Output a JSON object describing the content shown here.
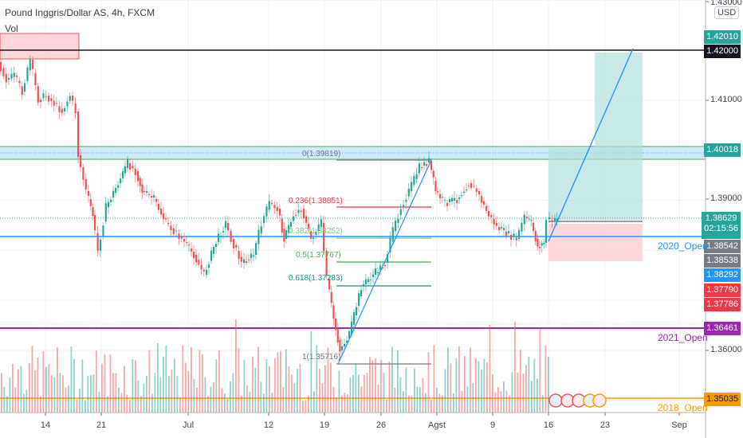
{
  "header": {
    "title": "Pound Inggris/Dollar AS, 4h, FXCM",
    "volume_label": "Vol"
  },
  "price_axis": {
    "currency_badge": "USD",
    "ticks": [
      "1.43000",
      "1.41000",
      "1.39000",
      "1.36000"
    ],
    "labels": {
      "target": {
        "value": "1.42010",
        "color": "#26a69a"
      },
      "round_level": {
        "value": "1.42000",
        "color": "#131722"
      },
      "resistance": {
        "value": "1.40018",
        "color": "#26a69a"
      },
      "last_price": {
        "value": "1.38629",
        "countdown": "02:15:56",
        "color": "#26a69a"
      },
      "open_2020": {
        "value": "1.38542",
        "color": "#787b86"
      },
      "gray2": {
        "value": "1.38538",
        "color": "#787b86"
      },
      "blue": {
        "value": "1.38292",
        "color": "#2196f3"
      },
      "red1": {
        "value": "1.37790",
        "color": "#f23645"
      },
      "red2": {
        "value": "1.37786",
        "color": "#f23645"
      },
      "open_2021": {
        "value": "1.36461",
        "color": "#9c27b0"
      },
      "open_2018": {
        "value": "1.35035",
        "color": "#ff9800"
      }
    }
  },
  "time_axis": {
    "ticks": [
      "14",
      "21",
      "Jul",
      "12",
      "19",
      "26",
      "Agst",
      "9",
      "16",
      "23",
      "Sep"
    ]
  },
  "annotations": {
    "open_2020": "2020_Open",
    "open_2021": "2021_Open",
    "open_2018": "2018_Open",
    "fib_0": "0(1.39819)",
    "fib_236": "0.236(1.38851)",
    "fib_382": "0.382(1.38252)",
    "fib_5": "0.5(1.37767)",
    "fib_618": "0.618(1.37283)",
    "fib_1": "1(1.35716)"
  },
  "colors": {
    "bull": "#26a69a",
    "bear": "#ef5350",
    "grid": "#eef1f6",
    "fib_red": "#f23645",
    "fib_green": "#4caf50",
    "fib_teal": "#089981",
    "fib_gray": "#787b86",
    "trend_blue": "#2196f3",
    "zone_blue": "#bbdefb",
    "long_target": "#b2dfdb",
    "long_stop": "#ffcdd2"
  },
  "chart_data": {
    "type": "candlestick",
    "title": "Pound Inggris/Dollar AS, 4h, FXCM",
    "symbol": "GBPUSD",
    "timeframe": "4h",
    "xlabel": "",
    "ylabel": "USD",
    "x_ticks": [
      "14",
      "21",
      "Jul",
      "12",
      "19",
      "26",
      "Agst",
      "9",
      "16",
      "23",
      "Sep"
    ],
    "y_ticks": [
      1.43,
      1.42,
      1.41,
      1.4,
      1.39,
      1.38,
      1.37,
      1.36,
      1.35
    ],
    "ylim": [
      1.3455,
      1.43
    ],
    "approx_swing_points": [
      {
        "date": "Jun 10",
        "price": 1.419
      },
      {
        "date": "Jun 17",
        "price": 1.409
      },
      {
        "date": "Jun 18",
        "price": 1.3985
      },
      {
        "date": "Jun 21",
        "price": 1.379
      },
      {
        "date": "Jun 24",
        "price": 1.398
      },
      {
        "date": "Jul 1",
        "price": 1.376
      },
      {
        "date": "Jul 6",
        "price": 1.3895
      },
      {
        "date": "Jul 8",
        "price": 1.38
      },
      {
        "date": "Jul 13",
        "price": 1.388
      },
      {
        "date": "Jul 20",
        "price": 1.3572
      },
      {
        "date": "Jul 30",
        "price": 1.3982
      },
      {
        "date": "Aug 3",
        "price": 1.388
      },
      {
        "date": "Aug 6",
        "price": 1.393
      },
      {
        "date": "Aug 13",
        "price": 1.38
      },
      {
        "date": "Aug 16",
        "price": 1.3863
      }
    ],
    "horizontal_levels": [
      {
        "name": "1.42000",
        "price": 1.42,
        "color": "#131722"
      },
      {
        "name": "Resistance zone",
        "price": 1.40018,
        "color": "#4caf50"
      },
      {
        "name": "2020_Open",
        "price": 1.38542,
        "color": "#2196f3"
      },
      {
        "name": "2021_Open",
        "price": 1.36461,
        "color": "#9c27b0"
      },
      {
        "name": "2018_Open",
        "price": 1.35035,
        "color": "#ff9800"
      }
    ],
    "fibonacci": [
      {
        "level": 0,
        "price": 1.39819
      },
      {
        "level": 0.236,
        "price": 1.38851
      },
      {
        "level": 0.382,
        "price": 1.38252
      },
      {
        "level": 0.5,
        "price": 1.37767
      },
      {
        "level": 0.618,
        "price": 1.37283
      },
      {
        "level": 1,
        "price": 1.35716
      }
    ],
    "long_position": {
      "entry": 1.38629,
      "target": 1.4201,
      "stop": 1.37786
    },
    "last_price": 1.38629,
    "bar_countdown": "02:15:56"
  }
}
